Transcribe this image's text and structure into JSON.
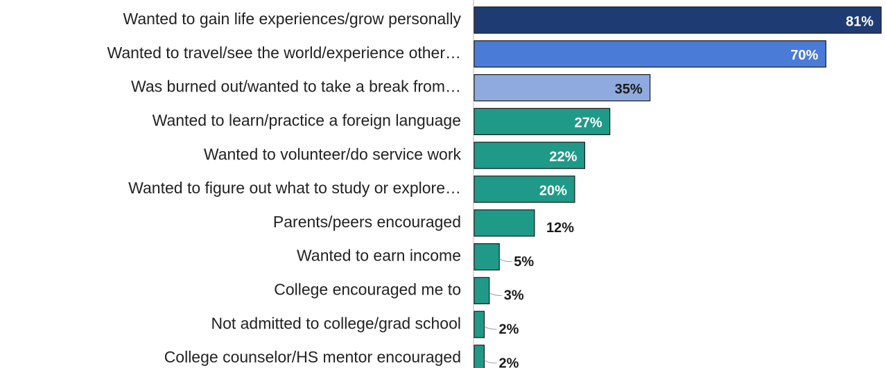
{
  "chart_data": {
    "type": "bar",
    "orientation": "horizontal",
    "categories": [
      "Wanted to gain life experiences/grow personally",
      "Wanted to travel/see the world/experience other…",
      "Was burned out/wanted to take a break from…",
      "Wanted to learn/practice a foreign language",
      "Wanted to volunteer/do service work",
      "Wanted to figure out what to study or explore…",
      "Parents/peers encouraged",
      "Wanted to earn income",
      "College encouraged me to",
      "Not admitted to college/grad school",
      "College counselor/HS mentor encouraged"
    ],
    "values": [
      81,
      70,
      35,
      27,
      22,
      20,
      12,
      5,
      3,
      2,
      2
    ],
    "value_labels": [
      "81%",
      "70%",
      "35%",
      "27%",
      "22%",
      "20%",
      "12%",
      "5%",
      "3%",
      "2%",
      "2%"
    ],
    "colors": [
      "#1f3b73",
      "#4a7bd6",
      "#8eaadf",
      "#1f9a88",
      "#1f9a88",
      "#1f9a88",
      "#1f9a88",
      "#1f9a88",
      "#1f9a88",
      "#1f9a88",
      "#1f9a88"
    ]
  }
}
